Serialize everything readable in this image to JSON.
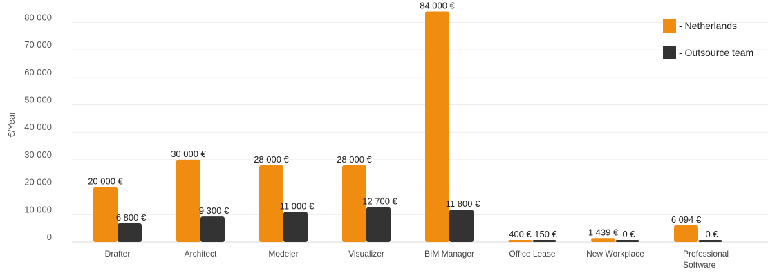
{
  "chart_data": {
    "type": "bar",
    "ylabel": "€/Year",
    "ylim": [
      0,
      84000
    ],
    "yticks": [
      0,
      10000,
      20000,
      30000,
      40000,
      50000,
      60000,
      70000,
      80000
    ],
    "ytick_labels": [
      "0",
      "10 000",
      "20 000",
      "30 000",
      "40 000",
      "50 000",
      "60 000",
      "70 000",
      "80 000"
    ],
    "grid": true,
    "legend_position": "top-right",
    "categories": [
      "Drafter",
      "Architect",
      "Modeler",
      "Visualizer",
      "BIM Manager",
      "Office Lease",
      "New Workplace",
      "Professional Software"
    ],
    "category_lines": [
      [
        "Drafter"
      ],
      [
        "Architect"
      ],
      [
        "Modeler"
      ],
      [
        "Visualizer"
      ],
      [
        "BIM Manager"
      ],
      [
        "Office Lease"
      ],
      [
        "New Workplace"
      ],
      [
        "Professional",
        "Software"
      ]
    ],
    "series": [
      {
        "name": "- Netherlands",
        "color": "#f08c10",
        "values": [
          20000,
          30000,
          28000,
          28000,
          84000,
          400,
          1439,
          6094
        ],
        "labels": [
          "20 000 €",
          "30 000 €",
          "28 000 €",
          "28 000 €",
          "84 000 €",
          "400 €",
          "1 439 €",
          "6 094 €"
        ]
      },
      {
        "name": "- Outsource team",
        "color": "#333333",
        "values": [
          6800,
          9300,
          11000,
          12700,
          11800,
          150,
          0,
          0
        ],
        "labels": [
          "6 800 €",
          "9 300 €",
          "11 000 €",
          "12 700 €",
          "11 800 €",
          "150 €",
          "0 €",
          "0 €"
        ]
      }
    ]
  }
}
